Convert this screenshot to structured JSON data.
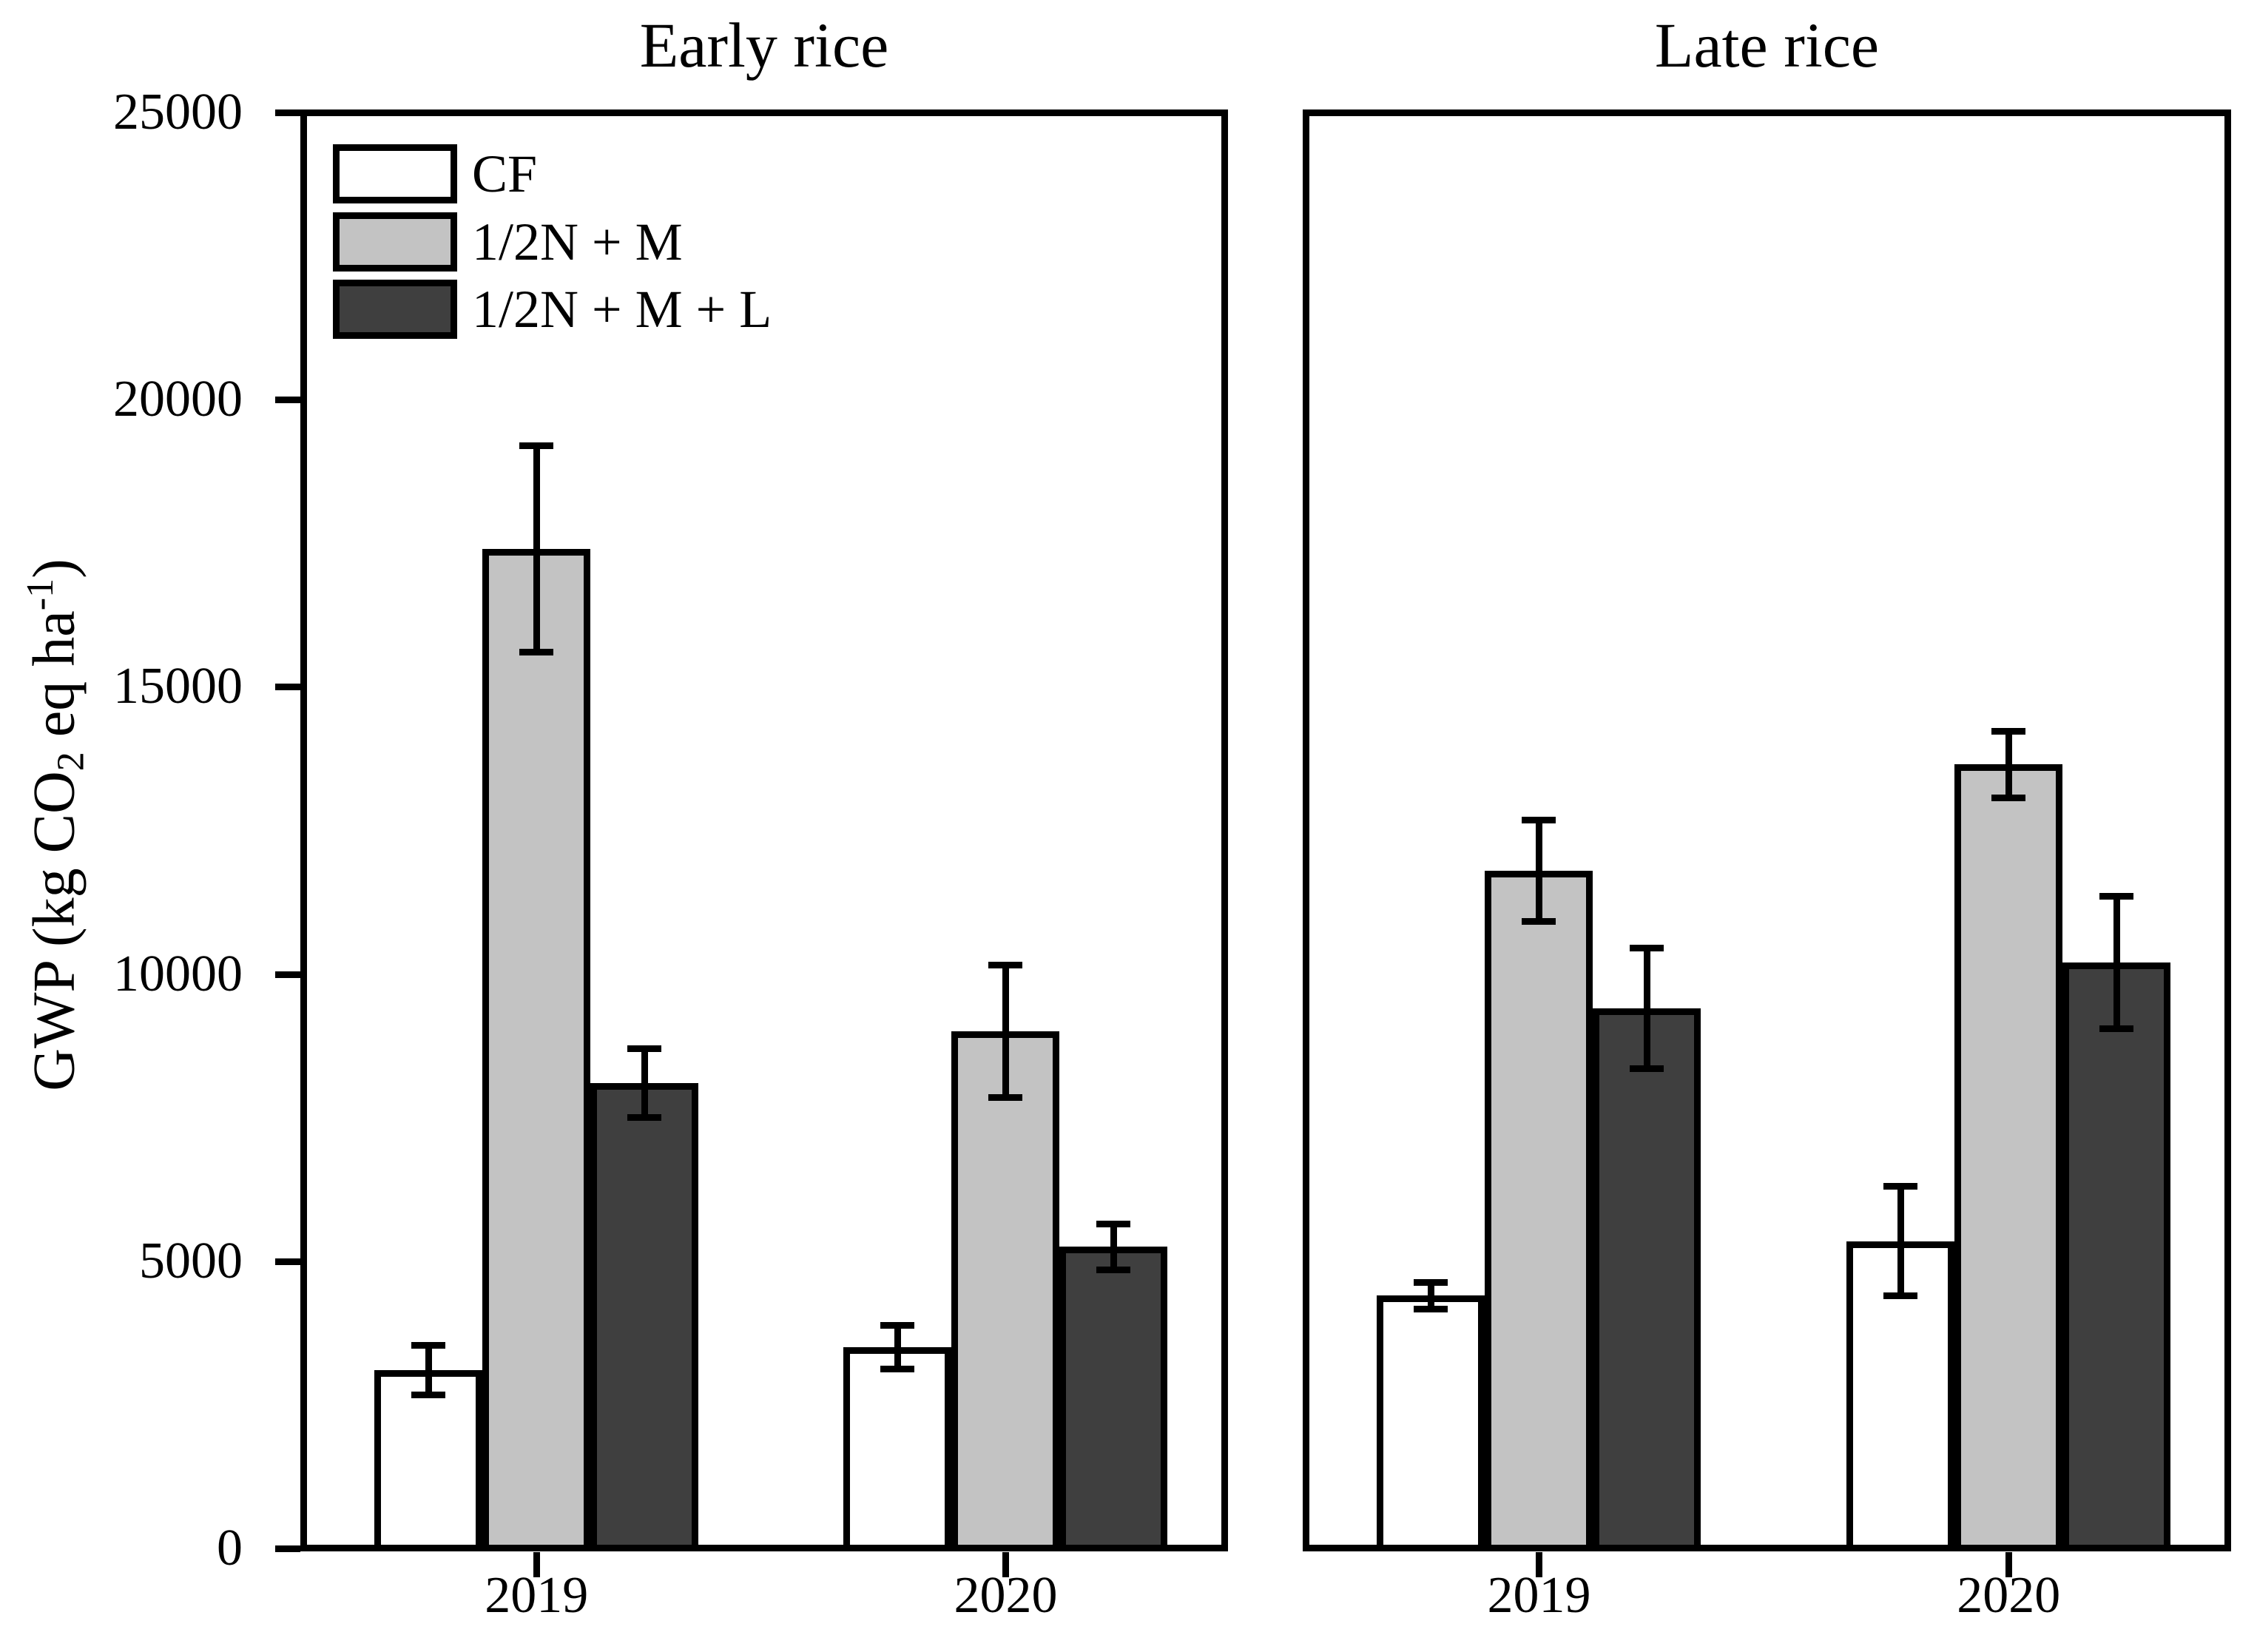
{
  "figure": {
    "background": "#ffffff",
    "axis_color": "#000000",
    "ylabel_plain": "GWP (kg CO2 eq ha-1)",
    "ylabel_parts": [
      {
        "text": "GWP (kg CO",
        "style": "normal"
      },
      {
        "text": "2",
        "style": "sub"
      },
      {
        "text": " eq ha",
        "style": "normal"
      },
      {
        "text": "-1",
        "style": "sup"
      },
      {
        "text": ")",
        "style": "normal"
      }
    ]
  },
  "legend": {
    "position": "upper-left-inside-first-panel",
    "items": [
      {
        "label": "CF",
        "fill": "#ffffff"
      },
      {
        "label": "1/2N + M",
        "fill": "#c3c3c3"
      },
      {
        "label": "1/2N + M + L",
        "fill": "#3f3f3f"
      }
    ]
  },
  "chart_data": [
    {
      "type": "bar",
      "title": "Early rice",
      "categories": [
        "2019",
        "2020"
      ],
      "series": [
        {
          "name": "CF",
          "fill": "#ffffff",
          "values": [
            3100,
            3500
          ],
          "errors": [
            430,
            380
          ]
        },
        {
          "name": "1/2N + M",
          "fill": "#c3c3c3",
          "values": [
            17400,
            9000
          ],
          "errors": [
            1800,
            1150
          ]
        },
        {
          "name": "1/2N + M + L",
          "fill": "#3f3f3f",
          "values": [
            8100,
            5250
          ],
          "errors": [
            600,
            400
          ]
        }
      ],
      "ylim": [
        0,
        25000
      ],
      "yticks": [
        0,
        5000,
        10000,
        15000,
        20000,
        25000
      ],
      "show_y_tick_labels": true,
      "grid": false,
      "error_bars": true
    },
    {
      "type": "bar",
      "title": "Late rice",
      "categories": [
        "2019",
        "2020"
      ],
      "series": [
        {
          "name": "CF",
          "fill": "#ffffff",
          "values": [
            4400,
            5350
          ],
          "errors": [
            230,
            950
          ]
        },
        {
          "name": "1/2N + M",
          "fill": "#c3c3c3",
          "values": [
            11800,
            13650
          ],
          "errors": [
            880,
            580
          ]
        },
        {
          "name": "1/2N + M + L",
          "fill": "#3f3f3f",
          "values": [
            9400,
            10200
          ],
          "errors": [
            1050,
            1150
          ]
        }
      ],
      "ylim": [
        0,
        25000
      ],
      "yticks": [
        0,
        5000,
        10000,
        15000,
        20000,
        25000
      ],
      "show_y_tick_labels": false,
      "grid": false,
      "error_bars": true
    }
  ]
}
